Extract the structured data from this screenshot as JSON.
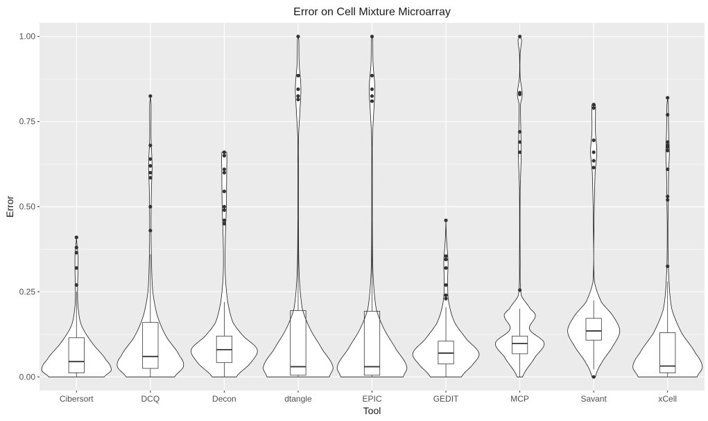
{
  "chart_data": {
    "type": "violin",
    "title": "Error on Cell Mixture Microarray",
    "xlabel": "Tool",
    "ylabel": "Error",
    "ylim": [
      -0.04,
      1.04
    ],
    "yticks": [
      0.0,
      0.25,
      0.5,
      0.75,
      1.0
    ],
    "ytick_labels": [
      "0.00",
      "0.25",
      "0.50",
      "0.75",
      "1.00"
    ],
    "grid": true,
    "background": "#ebebeb",
    "grid_color": "#ffffff",
    "categories": [
      "Cibersort",
      "DCQ",
      "Decon",
      "dtangle",
      "EPIC",
      "GEDIT",
      "MCP",
      "Savant",
      "xCell"
    ],
    "series": [
      {
        "category": "Cibersort",
        "box": {
          "q1": 0.012,
          "median": 0.045,
          "q3": 0.115,
          "whisker_low": 0.0,
          "whisker_high": 0.25
        },
        "outliers": [
          0.27,
          0.32,
          0.365,
          0.38,
          0.41
        ],
        "density": [
          [
            0.0,
            0.8
          ],
          [
            0.02,
            1.0
          ],
          [
            0.05,
            0.85
          ],
          [
            0.1,
            0.45
          ],
          [
            0.15,
            0.15
          ],
          [
            0.2,
            0.05
          ],
          [
            0.25,
            0.03
          ],
          [
            0.3,
            0.04
          ],
          [
            0.36,
            0.04
          ],
          [
            0.41,
            0.0
          ]
        ]
      },
      {
        "category": "DCQ",
        "box": {
          "q1": 0.025,
          "median": 0.06,
          "q3": 0.16,
          "whisker_low": 0.0,
          "whisker_high": 0.36
        },
        "outliers": [
          0.43,
          0.5,
          0.585,
          0.6,
          0.62,
          0.64,
          0.68,
          0.825
        ],
        "density": [
          [
            0.0,
            0.7
          ],
          [
            0.03,
            0.95
          ],
          [
            0.06,
            0.85
          ],
          [
            0.12,
            0.45
          ],
          [
            0.18,
            0.2
          ],
          [
            0.25,
            0.07
          ],
          [
            0.35,
            0.03
          ],
          [
            0.45,
            0.02
          ],
          [
            0.55,
            0.03
          ],
          [
            0.62,
            0.05
          ],
          [
            0.7,
            0.02
          ],
          [
            0.8,
            0.02
          ],
          [
            0.825,
            0.0
          ]
        ]
      },
      {
        "category": "Decon",
        "box": {
          "q1": 0.042,
          "median": 0.08,
          "q3": 0.12,
          "whisker_low": 0.0,
          "whisker_high": 0.22
        },
        "outliers": [
          0.45,
          0.46,
          0.49,
          0.5,
          0.545,
          0.6,
          0.61,
          0.65,
          0.66
        ],
        "density": [
          [
            0.0,
            0.35
          ],
          [
            0.04,
            0.75
          ],
          [
            0.08,
            0.95
          ],
          [
            0.12,
            0.55
          ],
          [
            0.16,
            0.25
          ],
          [
            0.22,
            0.1
          ],
          [
            0.3,
            0.03
          ],
          [
            0.4,
            0.03
          ],
          [
            0.5,
            0.06
          ],
          [
            0.6,
            0.07
          ],
          [
            0.66,
            0.07
          ],
          [
            0.661,
            0.0
          ]
        ]
      },
      {
        "category": "dtangle",
        "box": {
          "q1": 0.005,
          "median": 0.03,
          "q3": 0.195,
          "whisker_low": 0.0,
          "whisker_high": 0.46
        },
        "outliers": [
          0.815,
          0.825,
          0.845,
          0.885,
          1.0
        ],
        "density": [
          [
            0.0,
            0.9
          ],
          [
            0.03,
            1.0
          ],
          [
            0.08,
            0.7
          ],
          [
            0.14,
            0.35
          ],
          [
            0.2,
            0.12
          ],
          [
            0.3,
            0.03
          ],
          [
            0.45,
            0.01
          ],
          [
            0.6,
            0.01
          ],
          [
            0.7,
            0.01
          ],
          [
            0.78,
            0.05
          ],
          [
            0.85,
            0.08
          ],
          [
            0.92,
            0.03
          ],
          [
            0.99,
            0.02
          ],
          [
            1.0,
            0.0
          ]
        ]
      },
      {
        "category": "EPIC",
        "box": {
          "q1": 0.005,
          "median": 0.03,
          "q3": 0.193,
          "whisker_low": 0.0,
          "whisker_high": 0.46
        },
        "outliers": [
          0.81,
          0.825,
          0.845,
          0.885,
          1.0
        ],
        "density": [
          [
            0.0,
            0.9
          ],
          [
            0.03,
            1.0
          ],
          [
            0.08,
            0.7
          ],
          [
            0.14,
            0.35
          ],
          [
            0.2,
            0.12
          ],
          [
            0.3,
            0.03
          ],
          [
            0.45,
            0.01
          ],
          [
            0.6,
            0.01
          ],
          [
            0.7,
            0.01
          ],
          [
            0.78,
            0.05
          ],
          [
            0.85,
            0.08
          ],
          [
            0.92,
            0.03
          ],
          [
            0.99,
            0.02
          ],
          [
            1.0,
            0.0
          ]
        ]
      },
      {
        "category": "GEDIT",
        "box": {
          "q1": 0.038,
          "median": 0.07,
          "q3": 0.105,
          "whisker_low": 0.0,
          "whisker_high": 0.205
        },
        "outliers": [
          0.23,
          0.24,
          0.27,
          0.32,
          0.345,
          0.355,
          0.46
        ],
        "density": [
          [
            0.0,
            0.45
          ],
          [
            0.04,
            0.8
          ],
          [
            0.07,
            0.95
          ],
          [
            0.11,
            0.6
          ],
          [
            0.16,
            0.25
          ],
          [
            0.22,
            0.08
          ],
          [
            0.28,
            0.05
          ],
          [
            0.34,
            0.06
          ],
          [
            0.4,
            0.02
          ],
          [
            0.46,
            0.0
          ]
        ]
      },
      {
        "category": "MCP",
        "box": {
          "q1": 0.068,
          "median": 0.098,
          "q3": 0.12,
          "whisker_low": 0.0,
          "whisker_high": 0.2
        },
        "outliers": [
          0.255,
          0.66,
          0.69,
          0.72,
          0.83,
          0.835,
          1.0
        ],
        "density": [
          [
            0.0,
            0.08
          ],
          [
            0.06,
            0.45
          ],
          [
            0.1,
            0.7
          ],
          [
            0.14,
            0.28
          ],
          [
            0.18,
            0.45
          ],
          [
            0.2,
            0.3
          ],
          [
            0.24,
            0.04
          ],
          [
            0.35,
            0.01
          ],
          [
            0.55,
            0.01
          ],
          [
            0.65,
            0.04
          ],
          [
            0.72,
            0.03
          ],
          [
            0.8,
            0.02
          ],
          [
            0.83,
            0.07
          ],
          [
            0.88,
            0.01
          ],
          [
            0.95,
            0.01
          ],
          [
            0.99,
            0.05
          ],
          [
            1.0,
            0.0
          ]
        ]
      },
      {
        "category": "Savant",
        "box": {
          "q1": 0.108,
          "median": 0.135,
          "q3": 0.172,
          "whisker_low": 0.022,
          "whisker_high": 0.225
        },
        "outliers": [
          0.0,
          0.615,
          0.635,
          0.66,
          0.695,
          0.79,
          0.8
        ],
        "density": [
          [
            0.0,
            0.05
          ],
          [
            0.04,
            0.22
          ],
          [
            0.09,
            0.55
          ],
          [
            0.135,
            0.75
          ],
          [
            0.18,
            0.55
          ],
          [
            0.22,
            0.22
          ],
          [
            0.28,
            0.02
          ],
          [
            0.45,
            0.01
          ],
          [
            0.6,
            0.04
          ],
          [
            0.66,
            0.09
          ],
          [
            0.72,
            0.05
          ],
          [
            0.8,
            0.05
          ],
          [
            0.801,
            0.0
          ]
        ]
      },
      {
        "category": "xCell",
        "box": {
          "q1": 0.012,
          "median": 0.032,
          "q3": 0.13,
          "whisker_low": 0.0,
          "whisker_high": 0.28
        },
        "outliers": [
          0.325,
          0.52,
          0.53,
          0.61,
          0.665,
          0.675,
          0.68,
          0.69,
          0.77,
          0.82
        ],
        "density": [
          [
            0.0,
            0.85
          ],
          [
            0.03,
            1.0
          ],
          [
            0.07,
            0.8
          ],
          [
            0.13,
            0.4
          ],
          [
            0.2,
            0.12
          ],
          [
            0.3,
            0.03
          ],
          [
            0.42,
            0.01
          ],
          [
            0.52,
            0.02
          ],
          [
            0.6,
            0.03
          ],
          [
            0.66,
            0.05
          ],
          [
            0.72,
            0.03
          ],
          [
            0.8,
            0.02
          ],
          [
            0.82,
            0.0
          ]
        ]
      }
    ]
  }
}
